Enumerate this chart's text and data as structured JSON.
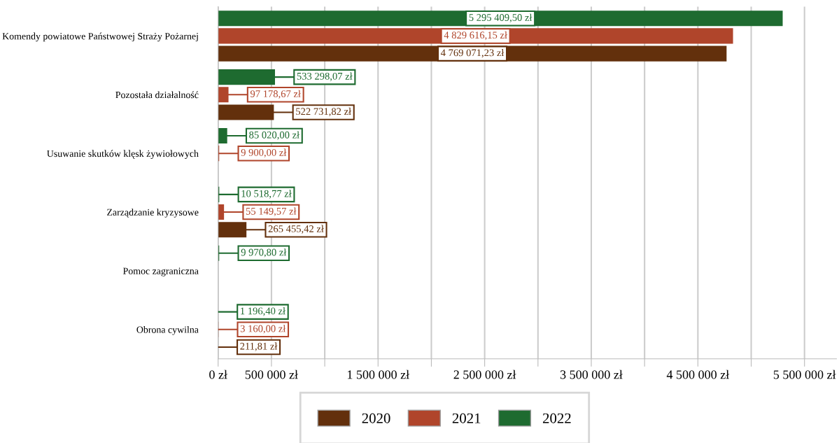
{
  "chart_data": {
    "type": "bar",
    "orientation": "horizontal",
    "categories": [
      "Komendy powiatowe Państwowej Straży Pożarnej",
      "Pozostała działalność",
      "Usuwanie skutków klęsk żywiołowych",
      "Zarządzanie kryzysowe",
      "Pomoc zagraniczna",
      "Obrona cywilna"
    ],
    "series": [
      {
        "name": "2020",
        "color": "#63300c",
        "values": [
          4769071.23,
          522731.82,
          null,
          265455.42,
          null,
          211.81
        ],
        "value_labels": [
          "4 769 071,23 zł",
          "522 731,82 zł",
          null,
          "265 455,42 zł",
          null,
          "211,81 zł"
        ]
      },
      {
        "name": "2021",
        "color": "#b0452b",
        "values": [
          4829616.15,
          97178.67,
          9900.0,
          55149.57,
          null,
          3160.0
        ],
        "value_labels": [
          "4 829 616,15 zł",
          "97 178,67 zł",
          "9 900,00 zł",
          "55 149,57 zł",
          null,
          "3 160,00 zł"
        ]
      },
      {
        "name": "2022",
        "color": "#1e6b30",
        "values": [
          5295409.5,
          533298.07,
          85020.0,
          10518.77,
          9970.8,
          1196.4
        ],
        "value_labels": [
          "5 295 409,50 zł",
          "533 298,07 zł",
          "85 020,00 zł",
          "10 518,77 zł",
          "9 970,80 zł",
          "1 196,40 zł"
        ]
      }
    ],
    "xlim": [
      0,
      5800000
    ],
    "xticks": [
      {
        "value": 0,
        "label": "0 zł"
      },
      {
        "value": 500000,
        "label": "500 000 zł"
      },
      {
        "value": 1000000,
        "label": null
      },
      {
        "value": 1500000,
        "label": "1 500 000 zł"
      },
      {
        "value": 2000000,
        "label": null
      },
      {
        "value": 2500000,
        "label": "2 500 000 zł"
      },
      {
        "value": 3000000,
        "label": null
      },
      {
        "value": 3500000,
        "label": "3 500 000 zł"
      },
      {
        "value": 4000000,
        "label": null
      },
      {
        "value": 4500000,
        "label": "4 500 000 zł"
      },
      {
        "value": 5000000,
        "label": null
      },
      {
        "value": 5500000,
        "label": "5 500 000 zł"
      }
    ],
    "grid": "x",
    "legend": "bottom"
  }
}
